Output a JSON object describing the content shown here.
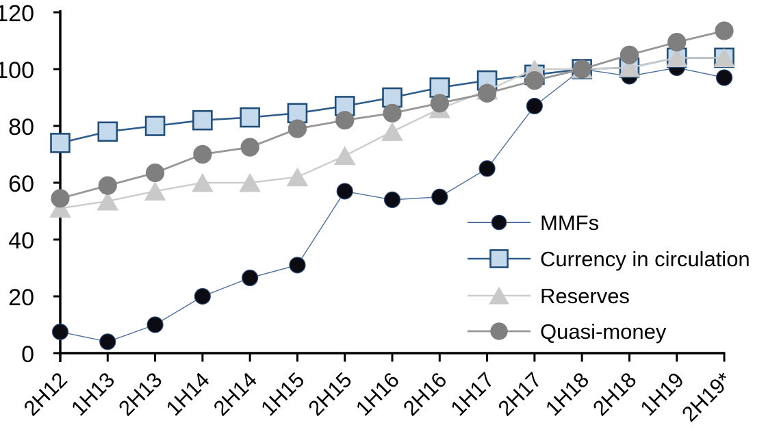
{
  "chart_data": {
    "type": "line",
    "title": "",
    "xlabel": "",
    "ylabel": "",
    "ylim": [
      0,
      120
    ],
    "yticks": [
      0,
      20,
      40,
      60,
      80,
      100,
      120
    ],
    "grid": false,
    "legend_position": "center-right",
    "axis_color": "#000000",
    "background_color": "#ffffff",
    "categories": [
      "2H12",
      "1H13",
      "2H13",
      "1H14",
      "2H14",
      "1H15",
      "2H15",
      "1H16",
      "2H16",
      "1H17",
      "2H17",
      "1H18",
      "2H18",
      "1H19",
      "2H19*"
    ],
    "series": [
      {
        "name": "MMFs",
        "marker": "circle",
        "marker_fill": "#0b0b13",
        "marker_stroke": "#2f4d7c",
        "line_color": "#4e6f9f",
        "line_width": 1.4,
        "marker_size": 23,
        "values": [
          7.5,
          4,
          10,
          20,
          26.5,
          31,
          57,
          54,
          55,
          65,
          87,
          100,
          97.5,
          100.5,
          97
        ]
      },
      {
        "name": "Currency in circulation",
        "marker": "square",
        "marker_fill": "#c5d9ed",
        "marker_stroke": "#1f4e79",
        "line_color": "#2e5c8a",
        "line_width": 2.6,
        "marker_size": 27,
        "values": [
          74,
          78,
          80,
          82,
          83,
          84.5,
          87,
          90,
          93.5,
          96,
          98,
          100,
          100.5,
          104,
          104
        ]
      },
      {
        "name": "Reserves",
        "marker": "triangle",
        "marker_fill": "#c9c9c9",
        "marker_stroke": "#c9c9c9",
        "line_color": "#cccccc",
        "line_width": 2.4,
        "marker_size": 30,
        "values": [
          51,
          53.5,
          57,
          60,
          60,
          62,
          69.5,
          78,
          86,
          92.5,
          100,
          100,
          100.5,
          104,
          104
        ]
      },
      {
        "name": "Quasi-money",
        "marker": "circle",
        "marker_fill": "#7f7f7f",
        "marker_stroke": "#7f7f7f",
        "line_color": "#969696",
        "line_width": 2.8,
        "marker_size": 26,
        "values": [
          54.5,
          59,
          63.5,
          70,
          72.5,
          79,
          82,
          84.5,
          88,
          91.5,
          96,
          100,
          105,
          109.5,
          113.5
        ]
      }
    ]
  }
}
